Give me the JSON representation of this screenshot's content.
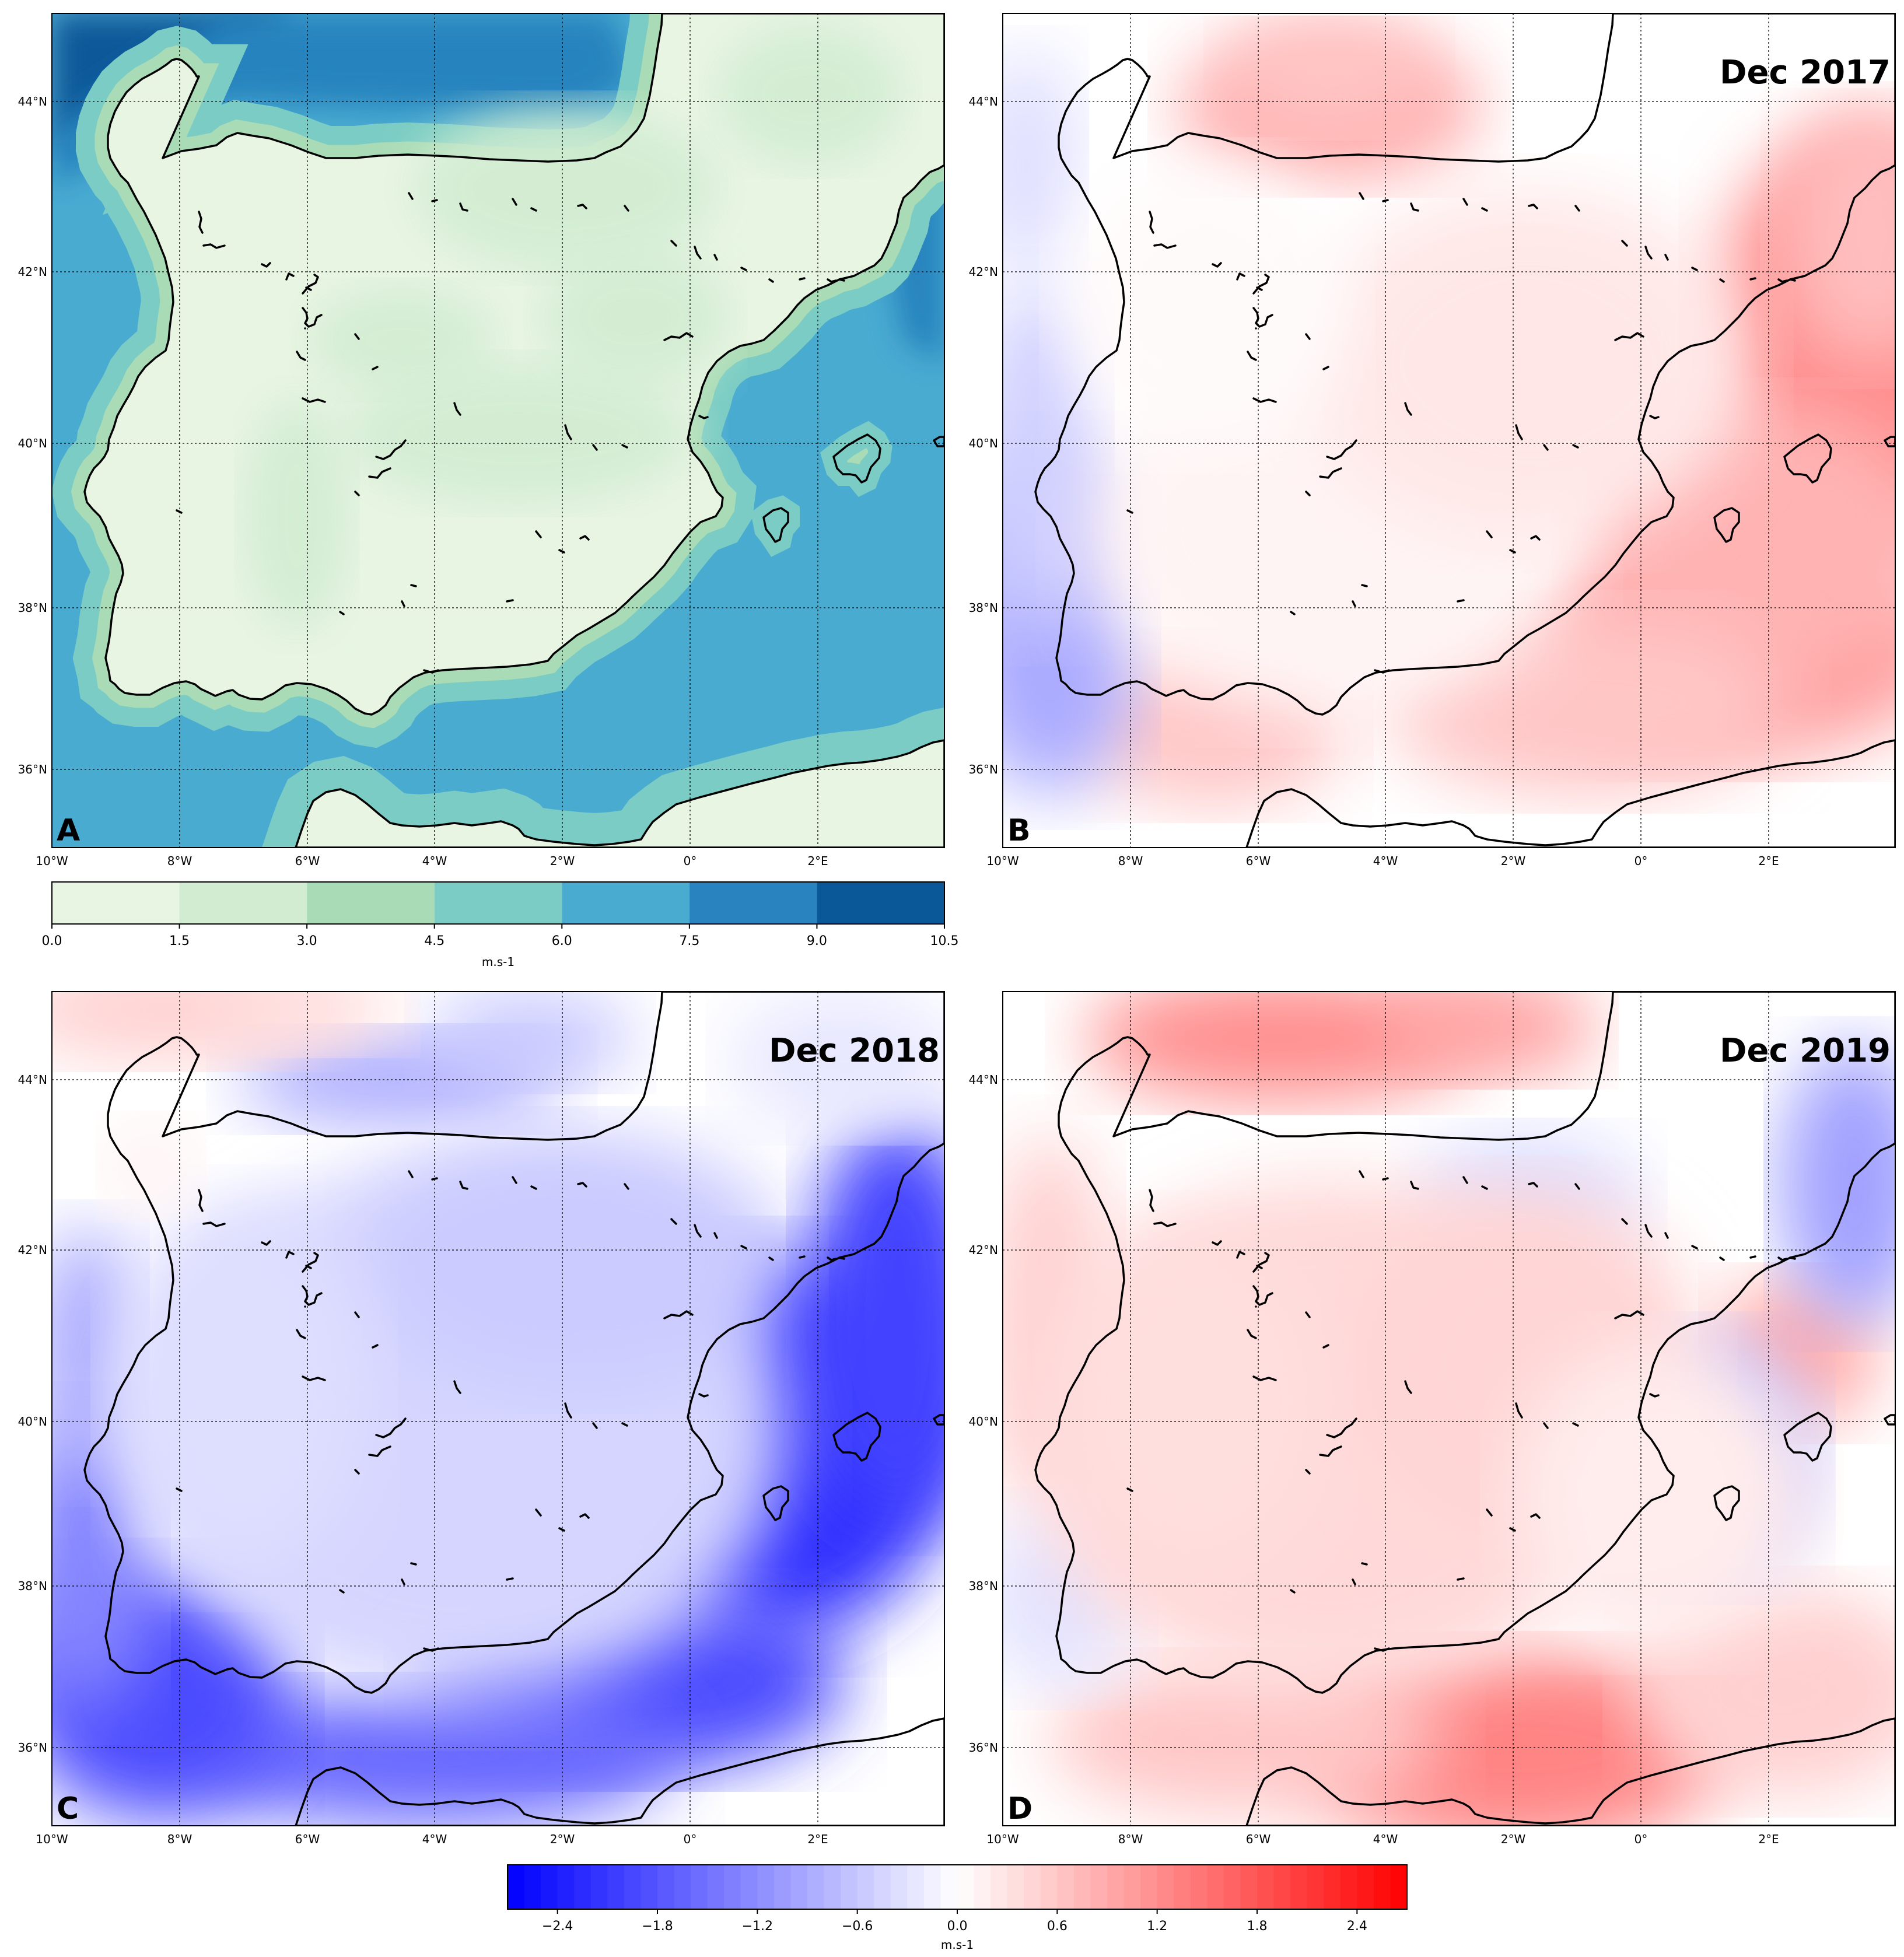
{
  "panels": [
    {
      "id": "A",
      "label": "A",
      "title": "",
      "field": "mean"
    },
    {
      "id": "B",
      "label": "B",
      "title": "Dec 2017",
      "field": "anomaly"
    },
    {
      "id": "C",
      "label": "C",
      "title": "Dec 2018",
      "field": "anomaly"
    },
    {
      "id": "D",
      "label": "D",
      "title": "Dec 2019",
      "field": "anomaly"
    }
  ],
  "axes": {
    "lon_labels": [
      "10°W",
      "8°W",
      "6°W",
      "4°W",
      "2°W",
      "0°",
      "2°E"
    ],
    "lat_labels": [
      "44°N",
      "42°N",
      "40°N",
      "38°N",
      "36°N"
    ],
    "lon_range": [
      -10,
      4
    ],
    "lat_range": [
      35,
      45
    ]
  },
  "colorbar_mean": {
    "ticks": [
      "0.0",
      "1.5",
      "3.0",
      "4.5",
      "6.0",
      "7.5",
      "9.0",
      "10.5"
    ],
    "unit": "m.s-1",
    "colors": [
      "#e8f5e3",
      "#d1ecd1",
      "#a9dbb6",
      "#7accc4",
      "#4aabd1",
      "#2883be",
      "#0b5899"
    ]
  },
  "colorbar_anomaly": {
    "ticks": [
      "-2.4",
      "-1.8",
      "-1.2",
      "-0.6",
      "0.0",
      "0.6",
      "1.2",
      "1.8",
      "2.4"
    ],
    "unit": "m.s-1",
    "range": [
      -2.7,
      2.7
    ],
    "color_low": "#0000ff",
    "color_mid": "#ffffff",
    "color_high": "#ff0000"
  }
}
